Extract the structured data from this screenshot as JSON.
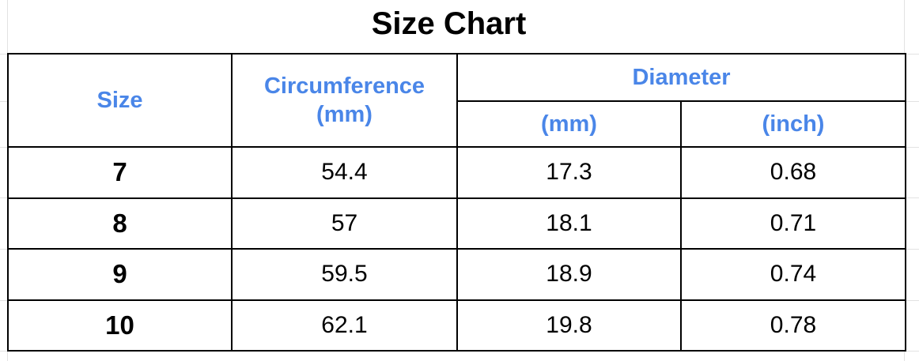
{
  "title": "Size Chart",
  "table": {
    "header": {
      "size": "Size",
      "circumference": "Circumference (mm)",
      "diameter": "Diameter",
      "diameter_units": [
        "(mm)",
        "(inch)"
      ]
    },
    "rows": [
      [
        7,
        54.4,
        17.3,
        0.68
      ],
      [
        8,
        57,
        18.1,
        0.71
      ],
      [
        9,
        59.5,
        18.9,
        0.74
      ],
      [
        10,
        62.1,
        19.8,
        0.78
      ]
    ]
  }
}
